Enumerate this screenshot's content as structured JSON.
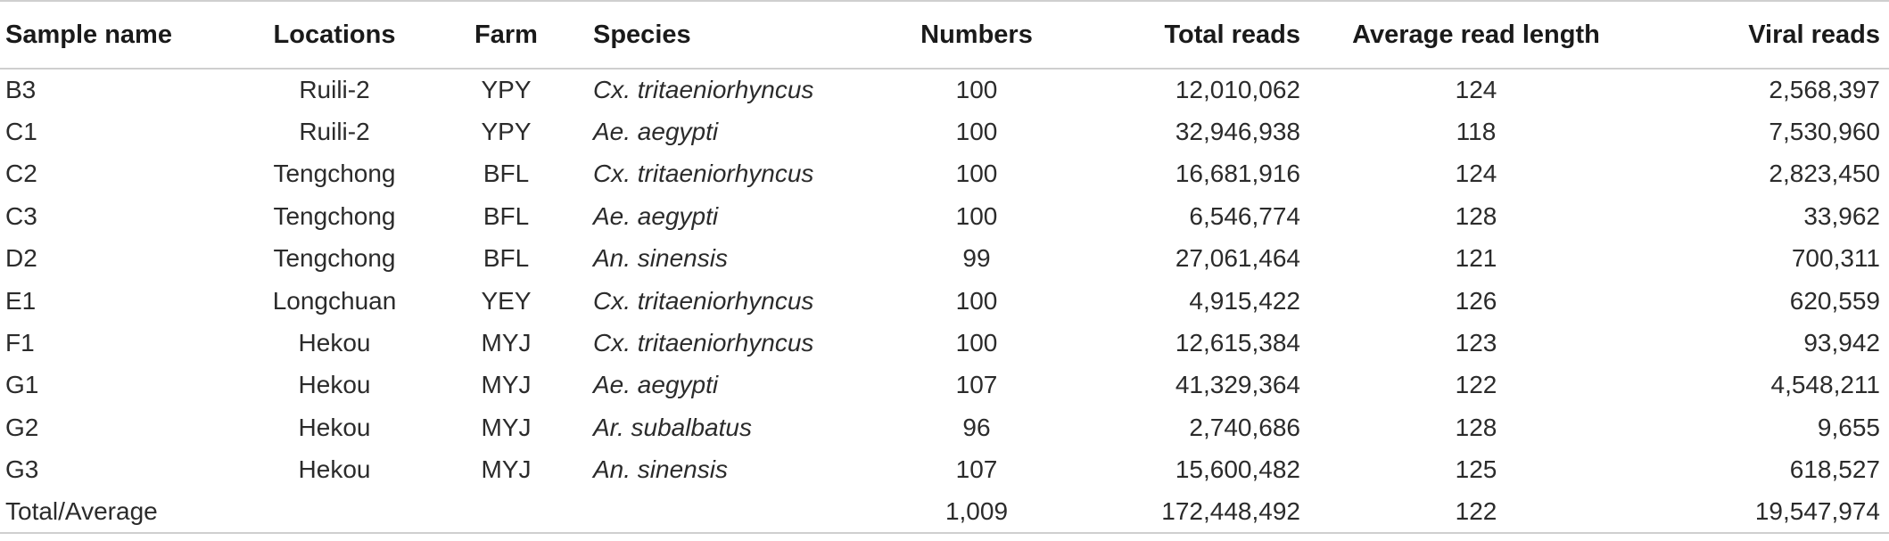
{
  "table": {
    "headers": [
      "Sample name",
      "Locations",
      "Farm",
      "Species",
      "Numbers",
      "Total reads",
      "Average read length",
      "Viral reads"
    ],
    "rows": [
      [
        "B3",
        "Ruili-2",
        "YPY",
        "Cx. tritaeniorhyncus",
        "100",
        "12,010,062",
        "124",
        "2,568,397"
      ],
      [
        "C1",
        "Ruili-2",
        "YPY",
        "Ae. aegypti",
        "100",
        "32,946,938",
        "118",
        "7,530,960"
      ],
      [
        "C2",
        "Tengchong",
        "BFL",
        "Cx. tritaeniorhyncus",
        "100",
        "16,681,916",
        "124",
        "2,823,450"
      ],
      [
        "C3",
        "Tengchong",
        "BFL",
        "Ae. aegypti",
        "100",
        "6,546,774",
        "128",
        "33,962"
      ],
      [
        "D2",
        "Tengchong",
        "BFL",
        "An. sinensis",
        "99",
        "27,061,464",
        "121",
        "700,311"
      ],
      [
        "E1",
        "Longchuan",
        "YEY",
        "Cx. tritaeniorhyncus",
        "100",
        "4,915,422",
        "126",
        "620,559"
      ],
      [
        "F1",
        "Hekou",
        "MYJ",
        "Cx. tritaeniorhyncus",
        "100",
        "12,615,384",
        "123",
        "93,942"
      ],
      [
        "G1",
        "Hekou",
        "MYJ",
        "Ae. aegypti",
        "107",
        "41,329,364",
        "122",
        "4,548,211"
      ],
      [
        "G2",
        "Hekou",
        "MYJ",
        "Ar. subalbatus",
        "96",
        "2,740,686",
        "128",
        "9,655"
      ],
      [
        "G3",
        "Hekou",
        "MYJ",
        "An. sinensis",
        "107",
        "15,600,482",
        "125",
        "618,527"
      ]
    ],
    "total": {
      "label": "Total/Average",
      "locations": "",
      "farm": "",
      "species": "",
      "numbers": "1,009",
      "total_reads": "172,448,492",
      "average_read_length": "122",
      "viral_reads": "19,547,974"
    }
  }
}
